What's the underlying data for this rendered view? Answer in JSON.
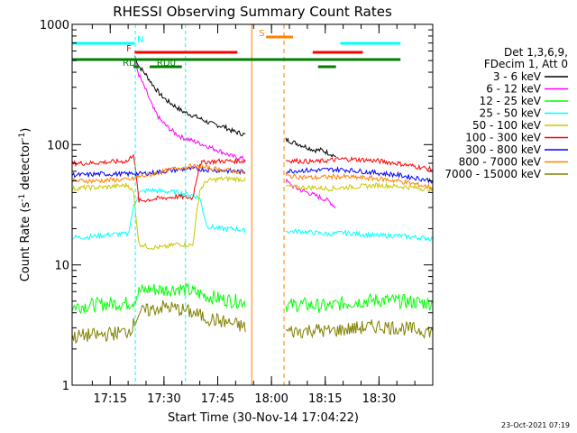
{
  "chart_data": {
    "type": "line",
    "title": "RHESSI Observing Summary Count Rates",
    "xlabel": "Start Time (30-Nov-14 17:04:22)",
    "ylabel_prefix": "Count Rate (s",
    "ylabel_exp1": "-1",
    "ylabel_mid": " detector",
    "ylabel_exp2": "-1",
    "ylabel_suffix": ")",
    "y_scale": "log",
    "ylim": [
      1,
      1000
    ],
    "xlim_minutes": [
      4.37,
      79.5
    ],
    "y_ticks": [
      {
        "value": 1,
        "label": "1"
      },
      {
        "value": 10,
        "label": "10"
      },
      {
        "value": 100,
        "label": "100"
      },
      {
        "value": 1000,
        "label": "1000"
      }
    ],
    "x_ticks": [
      {
        "value": 15,
        "label": "17:15"
      },
      {
        "value": 30,
        "label": "17:30"
      },
      {
        "value": 45,
        "label": "17:45"
      },
      {
        "value": 60,
        "label": "18:00"
      },
      {
        "value": 75,
        "label": "18:15"
      },
      {
        "value": 90,
        "label": "18:30"
      }
    ],
    "legend_header": [
      "Det 1,3,6,9,",
      "FDecim 1, Att 0"
    ],
    "legend_placement": "right",
    "date_stamp": "23-Oct-2021 07:19",
    "data_gaps_minutes": [
      [
        54.5,
        63.5
      ]
    ],
    "attenuator_times_minutes": [
      8.5,
      22.5
    ],
    "series": [
      {
        "name": "3 - 6 keV",
        "color": "#000000",
        "points": [
          [
            21.8,
            550
          ],
          [
            23,
            450
          ],
          [
            25,
            380
          ],
          [
            27,
            310
          ],
          [
            29,
            260
          ],
          [
            31,
            230
          ],
          [
            33,
            210
          ],
          [
            35,
            190
          ],
          [
            37,
            180
          ],
          [
            39,
            170
          ],
          [
            41,
            160
          ],
          [
            43,
            150
          ],
          [
            45,
            145
          ],
          [
            47,
            140
          ],
          [
            49,
            130
          ],
          [
            51,
            125
          ],
          [
            53,
            120
          ],
          [
            64,
            110
          ],
          [
            66,
            105
          ],
          [
            68,
            100
          ],
          [
            70,
            95
          ],
          [
            72,
            90
          ],
          [
            74,
            90
          ],
          [
            76,
            85
          ],
          [
            78,
            80
          ]
        ]
      },
      {
        "name": "6 - 12 keV",
        "color": "#ff00ff",
        "points": [
          [
            21.8,
            500
          ],
          [
            23,
            380
          ],
          [
            25,
            280
          ],
          [
            27,
            200
          ],
          [
            29,
            160
          ],
          [
            31,
            140
          ],
          [
            33,
            125
          ],
          [
            35,
            115
          ],
          [
            37,
            110
          ],
          [
            39,
            105
          ],
          [
            41,
            100
          ],
          [
            43,
            95
          ],
          [
            45,
            90
          ],
          [
            47,
            85
          ],
          [
            49,
            80
          ],
          [
            51,
            78
          ],
          [
            53,
            75
          ],
          [
            64,
            50
          ],
          [
            66,
            45
          ],
          [
            68,
            42
          ],
          [
            70,
            40
          ],
          [
            72,
            38
          ],
          [
            74,
            36
          ],
          [
            76,
            34
          ],
          [
            78,
            30
          ]
        ]
      },
      {
        "name": "12 - 25 keV",
        "color": "#00ff00",
        "points": [
          [
            4.5,
            4.5
          ],
          [
            8,
            4.6
          ],
          [
            12,
            4.7
          ],
          [
            16,
            4.8
          ],
          [
            20,
            4.8
          ],
          [
            21.5,
            5
          ],
          [
            23,
            6
          ],
          [
            26,
            6.3
          ],
          [
            30,
            6.2
          ],
          [
            34,
            6.4
          ],
          [
            38,
            6
          ],
          [
            42,
            5.5
          ],
          [
            46,
            5.2
          ],
          [
            50,
            5
          ],
          [
            53,
            5
          ],
          [
            64,
            4.6
          ],
          [
            68,
            4.7
          ],
          [
            72,
            4.6
          ],
          [
            76,
            4.5
          ],
          [
            80,
            4.8
          ],
          [
            85,
            5
          ],
          [
            90,
            5.1
          ],
          [
            95,
            5
          ],
          [
            100,
            4.9
          ],
          [
            105,
            4.8
          ]
        ]
      },
      {
        "name": "25 - 50 keV",
        "color": "#00ffff",
        "points": [
          [
            4.5,
            17
          ],
          [
            8,
            17
          ],
          [
            12,
            17.5
          ],
          [
            16,
            18
          ],
          [
            20,
            18
          ],
          [
            21.5,
            30
          ],
          [
            23,
            40
          ],
          [
            26,
            42
          ],
          [
            30,
            41
          ],
          [
            34,
            40
          ],
          [
            38,
            38
          ],
          [
            40,
            36
          ],
          [
            42,
            21
          ],
          [
            46,
            20
          ],
          [
            50,
            20
          ],
          [
            53,
            19
          ],
          [
            64,
            19
          ],
          [
            68,
            19
          ],
          [
            72,
            18.5
          ],
          [
            76,
            18
          ],
          [
            80,
            18.5
          ],
          [
            85,
            18
          ],
          [
            90,
            17.5
          ],
          [
            95,
            17.5
          ],
          [
            100,
            17
          ],
          [
            105,
            16.5
          ]
        ]
      },
      {
        "name": "50 - 100 keV",
        "color": "#c8c800",
        "points": [
          [
            4.5,
            43
          ],
          [
            8,
            44
          ],
          [
            12,
            44
          ],
          [
            16,
            45
          ],
          [
            20,
            46
          ],
          [
            21.5,
            40
          ],
          [
            23,
            15
          ],
          [
            26,
            14
          ],
          [
            30,
            14
          ],
          [
            34,
            15
          ],
          [
            38,
            14.5
          ],
          [
            40,
            42
          ],
          [
            42,
            50
          ],
          [
            46,
            52
          ],
          [
            50,
            52
          ],
          [
            53,
            51
          ],
          [
            64,
            45
          ],
          [
            68,
            44
          ],
          [
            72,
            44
          ],
          [
            76,
            43
          ],
          [
            80,
            44
          ],
          [
            85,
            45
          ],
          [
            90,
            46
          ],
          [
            95,
            45
          ],
          [
            100,
            44
          ],
          [
            105,
            42
          ]
        ]
      },
      {
        "name": "100 - 300 keV",
        "color": "#ff0000",
        "points": [
          [
            4.5,
            70
          ],
          [
            8,
            70
          ],
          [
            12,
            71
          ],
          [
            16,
            72
          ],
          [
            20,
            73
          ],
          [
            21.5,
            85
          ],
          [
            23,
            34
          ],
          [
            26,
            35
          ],
          [
            30,
            36
          ],
          [
            34,
            37
          ],
          [
            38,
            36
          ],
          [
            40,
            70
          ],
          [
            42,
            72
          ],
          [
            46,
            73
          ],
          [
            50,
            73
          ],
          [
            53,
            73
          ],
          [
            64,
            74
          ],
          [
            68,
            73
          ],
          [
            72,
            72
          ],
          [
            76,
            74
          ],
          [
            80,
            76
          ],
          [
            85,
            75
          ],
          [
            90,
            73
          ],
          [
            95,
            70
          ],
          [
            100,
            66
          ],
          [
            105,
            62
          ]
        ]
      },
      {
        "name": "300 - 800 keV",
        "color": "#0000ff",
        "points": [
          [
            4.5,
            56
          ],
          [
            8,
            56
          ],
          [
            12,
            57
          ],
          [
            16,
            57
          ],
          [
            20,
            57
          ],
          [
            21.5,
            58
          ],
          [
            23,
            57
          ],
          [
            26,
            58
          ],
          [
            30,
            60
          ],
          [
            34,
            62
          ],
          [
            38,
            63
          ],
          [
            42,
            62
          ],
          [
            46,
            61
          ],
          [
            50,
            60
          ],
          [
            53,
            59
          ],
          [
            64,
            60
          ],
          [
            68,
            61
          ],
          [
            72,
            61
          ],
          [
            76,
            62
          ],
          [
            80,
            62
          ],
          [
            85,
            60
          ],
          [
            90,
            58
          ],
          [
            95,
            56
          ],
          [
            100,
            53
          ],
          [
            105,
            50
          ]
        ]
      },
      {
        "name": "800 - 7000 keV",
        "color": "#ff8000",
        "points": [
          [
            4.5,
            50
          ],
          [
            8,
            50
          ],
          [
            12,
            50
          ],
          [
            16,
            51
          ],
          [
            20,
            51
          ],
          [
            21.5,
            52
          ],
          [
            23,
            54
          ],
          [
            26,
            56
          ],
          [
            30,
            60
          ],
          [
            34,
            64
          ],
          [
            38,
            66
          ],
          [
            42,
            64
          ],
          [
            46,
            62
          ],
          [
            50,
            60
          ],
          [
            53,
            58
          ],
          [
            64,
            55
          ],
          [
            68,
            54
          ],
          [
            72,
            53
          ],
          [
            76,
            54
          ],
          [
            80,
            54
          ],
          [
            85,
            53
          ],
          [
            90,
            52
          ],
          [
            95,
            50
          ],
          [
            100,
            47
          ],
          [
            105,
            44
          ]
        ]
      },
      {
        "name": "7000 - 15000 keV",
        "color": "#808000",
        "points": [
          [
            4.5,
            2.5
          ],
          [
            8,
            2.6
          ],
          [
            12,
            2.6
          ],
          [
            16,
            2.7
          ],
          [
            20,
            2.8
          ],
          [
            21.5,
            3.2
          ],
          [
            23,
            4
          ],
          [
            26,
            4.2
          ],
          [
            30,
            4.5
          ],
          [
            34,
            4.3
          ],
          [
            38,
            4
          ],
          [
            42,
            3.6
          ],
          [
            46,
            3.4
          ],
          [
            50,
            3.2
          ],
          [
            53,
            3
          ],
          [
            64,
            2.8
          ],
          [
            68,
            2.8
          ],
          [
            72,
            2.9
          ],
          [
            76,
            2.8
          ],
          [
            80,
            2.9
          ],
          [
            85,
            3
          ],
          [
            90,
            3.1
          ],
          [
            95,
            3
          ],
          [
            100,
            2.9
          ],
          [
            105,
            2.8
          ]
        ]
      }
    ],
    "flag_bars": [
      {
        "name": "N",
        "color": "#00ffff",
        "row": 0,
        "start_min": 4.37,
        "end_min": 21.8,
        "label": "N",
        "label_at": 22.5
      },
      {
        "name": "N",
        "color": "#00ffff",
        "row": 0,
        "start_min": 79.2,
        "end_min": 96,
        "label": "",
        "label_at": 0
      },
      {
        "name": "S",
        "color": "#ff8000",
        "row": -1,
        "start_min": 58.5,
        "end_min": 66,
        "label": "S",
        "label_at": 56.5
      },
      {
        "name": "F",
        "color": "#ff0000",
        "row": 1,
        "start_min": 21.8,
        "end_min": 50.5,
        "label": "F",
        "label_at": 19.5
      },
      {
        "name": "F",
        "color": "#ff0000",
        "row": 1,
        "start_min": 71.5,
        "end_min": 85.5,
        "label": "",
        "label_at": 0
      },
      {
        "name": "SAA",
        "color": "#008000",
        "row": 2,
        "start_min": 4.37,
        "end_min": 96,
        "label": "",
        "label_at": 0
      },
      {
        "name": "RD0",
        "color": "#008000",
        "row": 3,
        "start_min": 26,
        "end_min": 35,
        "label": "RD0",
        "label_at": 28
      },
      {
        "name": "RD",
        "color": "#008000",
        "row": 3,
        "start_min": 21.5,
        "end_min": 23,
        "label": "RD",
        "label_at": 18.5
      },
      {
        "name": "RD",
        "color": "#008000",
        "row": 3,
        "start_min": 73,
        "end_min": 78,
        "label": "",
        "label_at": 0
      }
    ]
  }
}
